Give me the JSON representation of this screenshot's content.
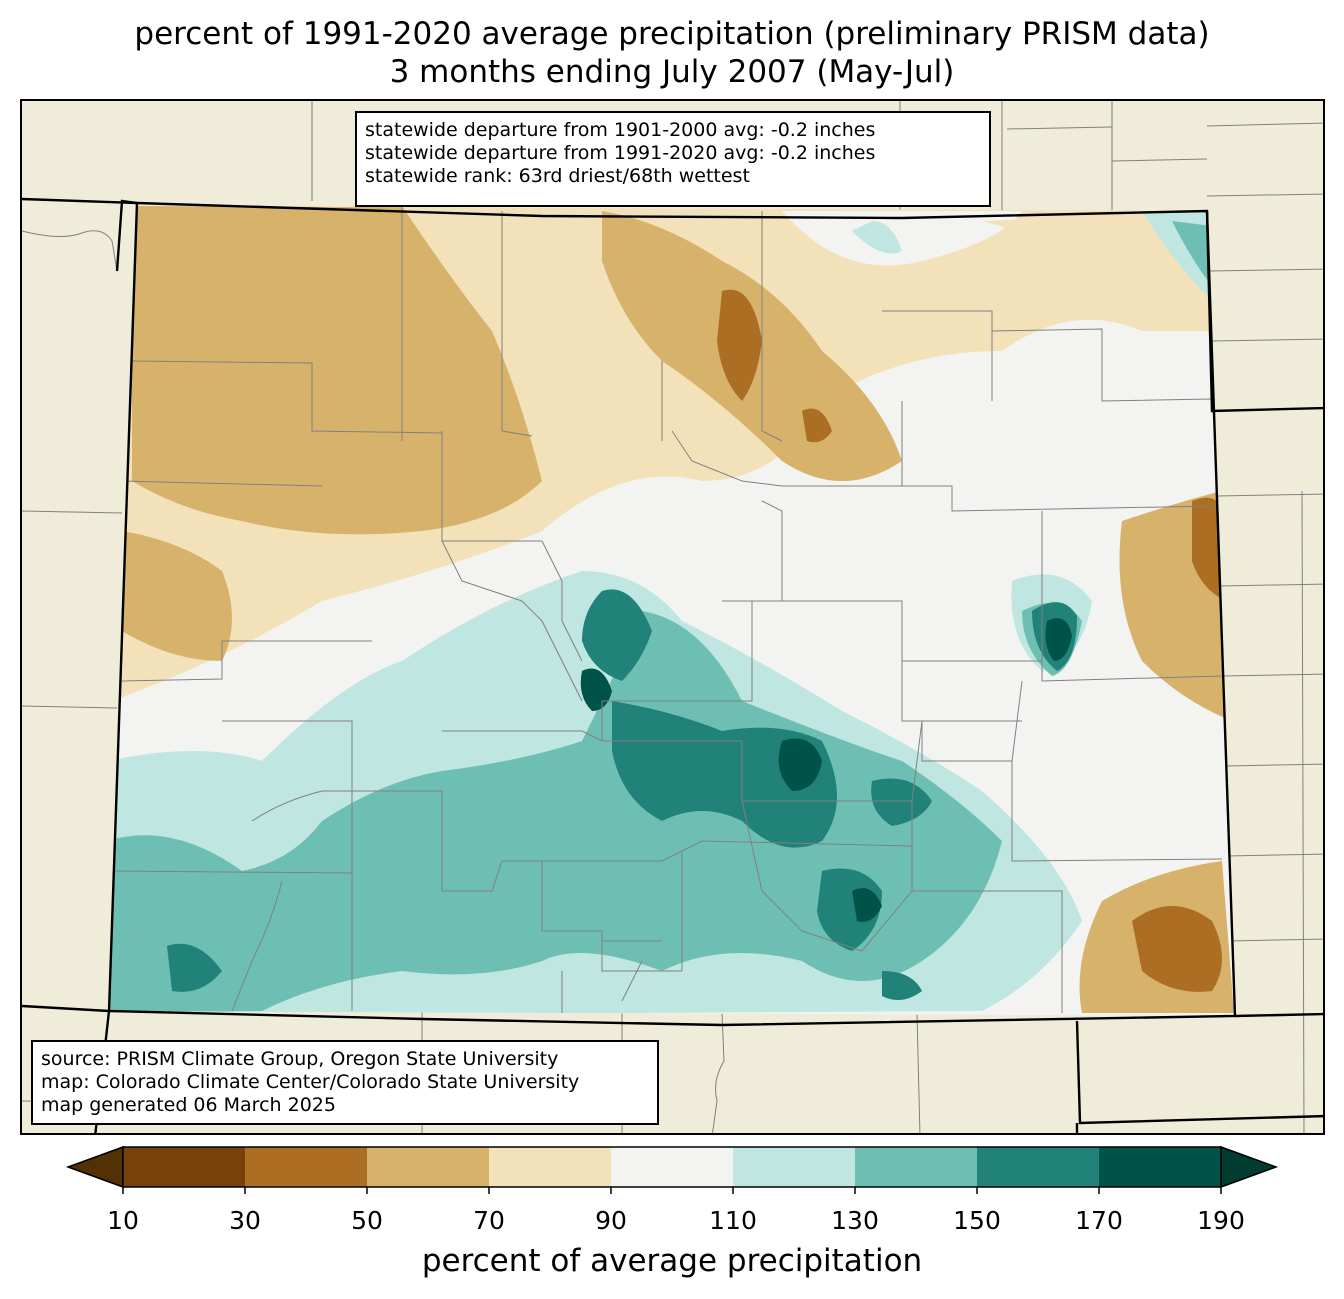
{
  "title": {
    "line1": "percent of 1991-2020 average precipitation (preliminary PRISM data)",
    "line2": "3 months ending July 2007 (May-Jul)"
  },
  "stats_box": {
    "line1": "statewide departure from 1901-2000 avg: -0.2 inches",
    "line2": "statewide departure from 1991-2020 avg: -0.2 inches",
    "line3": "statewide rank: 63rd driest/68th wettest"
  },
  "source_box": {
    "line1": "source: PRISM Climate Group, Oregon State University",
    "line2": "map: Colorado Climate Center/Colorado State University",
    "line3": "map generated 06 March 2025"
  },
  "colorbar": {
    "label": "percent of average precipitation",
    "ticks": [
      "10",
      "30",
      "50",
      "70",
      "90",
      "110",
      "130",
      "150",
      "170",
      "190"
    ],
    "under_color": "#543005",
    "over_color": "#003c30",
    "bins": [
      {
        "range": "10-30",
        "color": "#774209"
      },
      {
        "range": "30-50",
        "color": "#ab6e23"
      },
      {
        "range": "50-70",
        "color": "#d7b26a"
      },
      {
        "range": "70-90",
        "color": "#f3e2b9"
      },
      {
        "range": "90-110",
        "color": "#f3f4f2"
      },
      {
        "range": "110-130",
        "color": "#bfe6e0"
      },
      {
        "range": "130-150",
        "color": "#6ebfb3"
      },
      {
        "range": "150-170",
        "color": "#208278"
      },
      {
        "range": "170-190",
        "color": "#005349"
      }
    ]
  },
  "colors": {
    "background_land": "#efecd9",
    "state_border": "#000000",
    "county_border": "#808080"
  }
}
